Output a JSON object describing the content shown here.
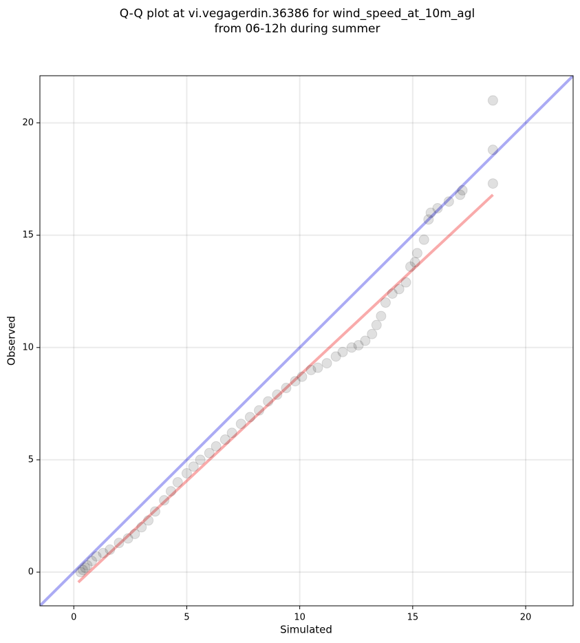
{
  "chart_data": {
    "type": "scatter",
    "title": [
      "Q-Q plot at vi.vegagerdin.36386 for wind_speed_at_10m_agl",
      "from 06-12h during summer"
    ],
    "x_label": "Simulated",
    "y_label": "Observed",
    "xlim": [
      -1.5,
      22.1
    ],
    "ylim": [
      -1.5,
      22.1
    ],
    "xticks": [
      0,
      5,
      10,
      15,
      20
    ],
    "yticks": [
      0,
      5,
      10,
      15,
      20
    ],
    "grid": true,
    "color": "#000000",
    "alpha": 0.12,
    "x": [
      0.3,
      0.4,
      0.5,
      0.6,
      0.8,
      1,
      1.3,
      1.6,
      2,
      2.4,
      2.7,
      3,
      3.3,
      3.6,
      4,
      4.3,
      4.6,
      5,
      5.3,
      5.6,
      6,
      6.3,
      6.7,
      7,
      7.4,
      7.8,
      8.2,
      8.6,
      9,
      9.4,
      9.8,
      10.1,
      10.5,
      10.8,
      11.2,
      11.6,
      11.9,
      12.3,
      12.6,
      12.9,
      13.2,
      13.4,
      13.6,
      13.8,
      14.1,
      14.4,
      14.7,
      14.9,
      15.1,
      15.2,
      15.5,
      15.7,
      15.8,
      16.1,
      16.6,
      17.1,
      17.2,
      18.55,
      18.55,
      18.55
    ],
    "values": [
      0,
      0.1,
      0.2,
      0.3,
      0.5,
      0.7,
      0.85,
      1.0,
      1.3,
      1.5,
      1.7,
      2.0,
      2.3,
      2.7,
      3.2,
      3.6,
      4.0,
      4.4,
      4.7,
      5.0,
      5.3,
      5.6,
      5.9,
      6.2,
      6.6,
      6.9,
      7.2,
      7.6,
      7.9,
      8.2,
      8.5,
      8.7,
      9.0,
      9.1,
      9.3,
      9.6,
      9.8,
      10.0,
      10.1,
      10.3,
      10.6,
      11.0,
      11.4,
      12.0,
      12.4,
      12.6,
      12.9,
      13.6,
      13.8,
      14.2,
      14.8,
      15.7,
      16.0,
      16.2,
      16.5,
      16.8,
      17.0,
      17.3,
      18.8,
      21.0
    ],
    "identity_line": {
      "color": "#0000dd"
    },
    "fit_line": {
      "color": "#ee0000",
      "x": [
        0.2,
        18.55
      ],
      "values": [
        -0.45,
        16.8
      ]
    }
  }
}
